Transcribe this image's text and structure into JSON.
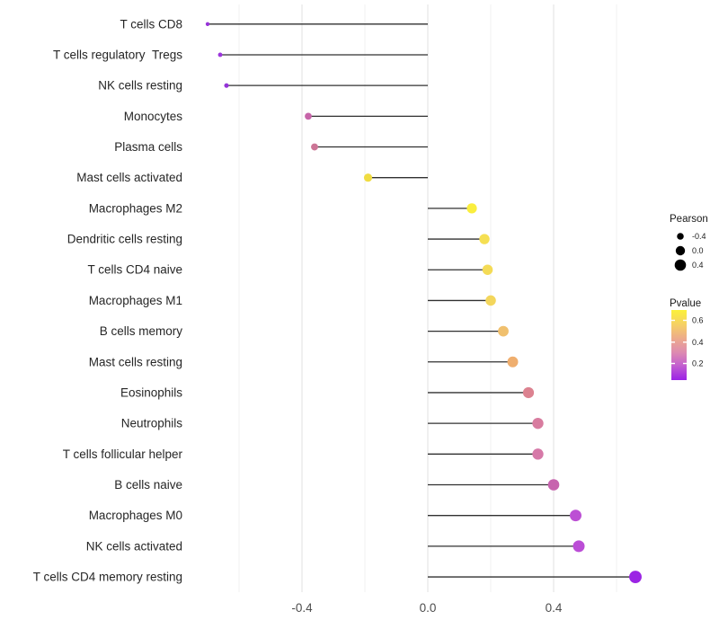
{
  "chart_data": {
    "type": "lollipop",
    "orientation": "horizontal",
    "title": "",
    "xlabel": "",
    "ylabel": "",
    "categories": [
      "T cells CD8",
      "T cells regulatory  Tregs",
      "NK cells resting",
      "Monocytes",
      "Plasma cells",
      "Mast cells activated",
      "Macrophages M2",
      "Dendritic cells resting",
      "T cells CD4 naive",
      "Macrophages M1",
      "B cells memory",
      "Mast cells resting",
      "Eosinophils",
      "Neutrophils",
      "T cells follicular helper",
      "B cells naive",
      "Macrophages M0",
      "NK cells activated",
      "T cells CD4 memory resting"
    ],
    "series": [
      {
        "name": "Pearson",
        "values": [
          -0.7,
          -0.66,
          -0.64,
          -0.38,
          -0.36,
          -0.19,
          0.14,
          0.18,
          0.19,
          0.2,
          0.24,
          0.27,
          0.32,
          0.35,
          0.35,
          0.4,
          0.47,
          0.48,
          0.66
        ]
      }
    ],
    "point_colors": [
      "#9632D8",
      "#9C36DC",
      "#9434D8",
      "#C765A9",
      "#CC7596",
      "#F0DC41",
      "#FAEE3E",
      "#F5DF52",
      "#F4DB56",
      "#F3D65C",
      "#F0C06E",
      "#EFAE6E",
      "#DC8290",
      "#D87C9F",
      "#D679A8",
      "#C763AE",
      "#BC4FD4",
      "#BB4DD6",
      "#9B24E4"
    ],
    "xlim": [
      -0.76,
      0.76
    ],
    "x_ticks": [
      -0.4,
      0.0,
      0.4
    ],
    "x_tick_labels": [
      "-0.4",
      "0.0",
      "0.4"
    ],
    "gridline_values": [
      -0.6,
      -0.4,
      -0.2,
      0.0,
      0.2,
      0.4,
      0.6
    ],
    "major_gridline_values": [
      -0.4,
      0.0,
      0.4
    ],
    "grid": "vertical-only",
    "legend_position": "right",
    "legends": {
      "size": {
        "title": "Pearson",
        "entries": [
          {
            "label": "-0.4",
            "value": -0.4
          },
          {
            "label": "0.0",
            "value": 0.0
          },
          {
            "label": "0.4",
            "value": 0.4
          }
        ]
      },
      "color": {
        "title": "Pvalue",
        "ticks": [
          "0.6",
          "0.4",
          "0.2"
        ],
        "gradient_top_to_bottom": [
          "#FBF139",
          "#F5CE67",
          "#ECA88E",
          "#DE8CB0",
          "#C562CE",
          "#9B22E6"
        ]
      }
    }
  },
  "colors": {
    "background": "#FFFFFF",
    "segment": "#303030",
    "gridline_minor": "#EFEFEF",
    "gridline_major": "#E4E4E4",
    "axis_text": "#4D4D4D",
    "label_text": "#262626",
    "legend_text": "#1A1A1A",
    "legend_dot": "#000000"
  }
}
